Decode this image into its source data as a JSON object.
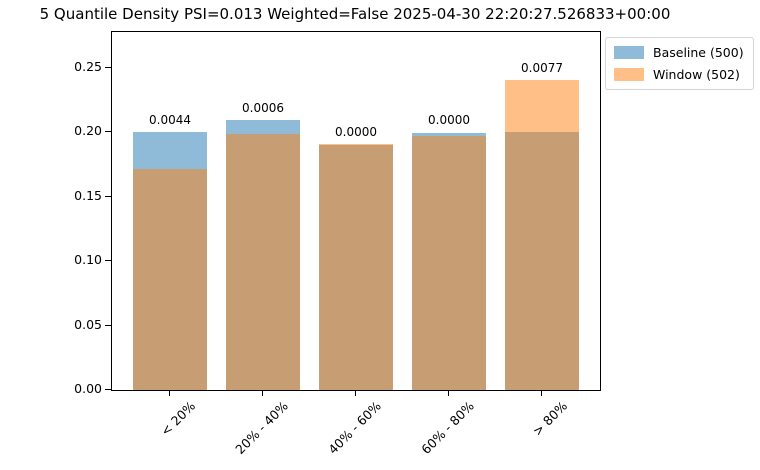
{
  "chart_data": {
    "type": "bar",
    "title": "5 Quantile Density PSI=0.013 Weighted=False 2025-04-30 22:20:27.526833+00:00",
    "categories": [
      "< 20%",
      "20% - 40%",
      "40% - 60%",
      "60% - 80%",
      "> 80%"
    ],
    "series": [
      {
        "name": "Baseline (500)",
        "color": "#8fbbd9",
        "values": [
          0.2,
          0.21,
          0.19,
          0.2,
          0.2
        ]
      },
      {
        "name": "Window (502)",
        "color": "#ffbf86",
        "values": [
          0.1713,
          0.1992,
          0.1912,
          0.1972,
          0.241
        ]
      }
    ],
    "overlap_color": "#c79d73",
    "bar_annotations": [
      "0.0044",
      "0.0006",
      "0.0000",
      "0.0000",
      "0.0077"
    ],
    "yticks": [
      "0.00",
      "0.05",
      "0.10",
      "0.15",
      "0.20",
      "0.25"
    ],
    "ylim": [
      0,
      0.278
    ],
    "xlabel": "",
    "ylabel": "",
    "grid": false,
    "bar_style": "overlapping translucent bars (alpha 0.5)",
    "legend_position": "upper right, outside axes"
  }
}
